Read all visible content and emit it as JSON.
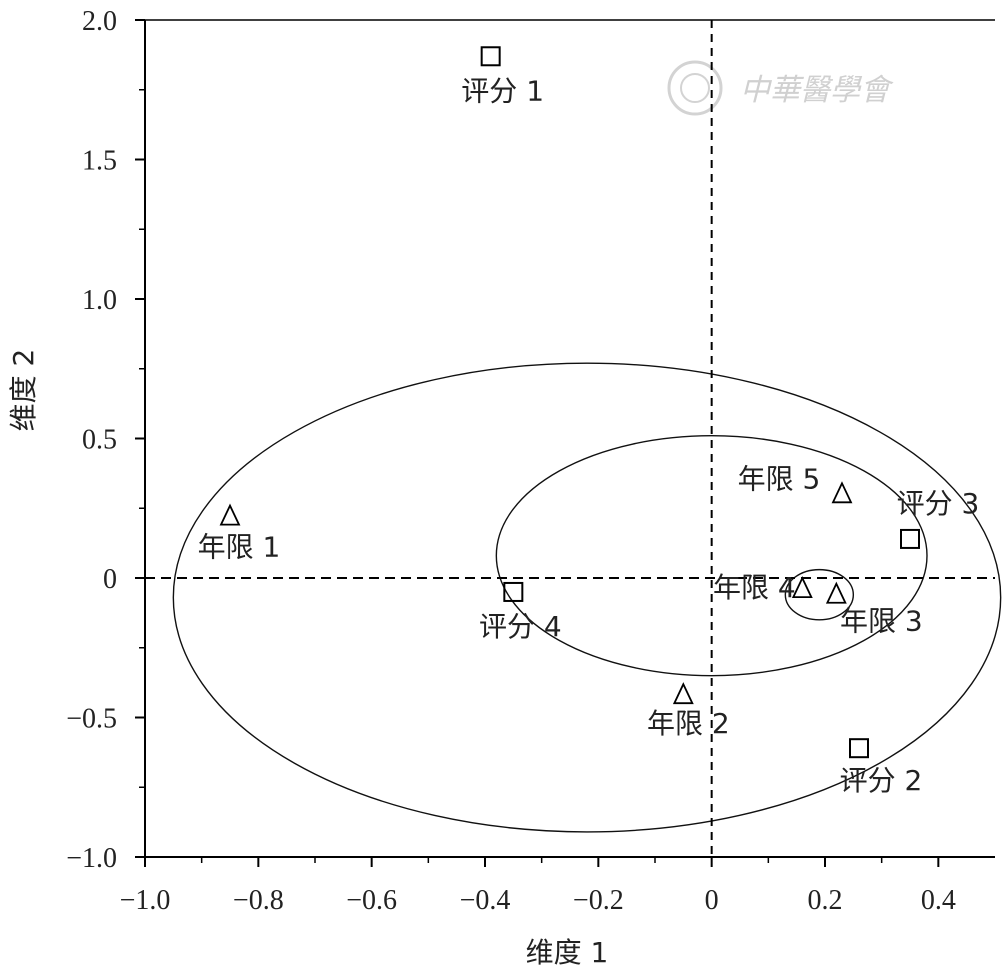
{
  "chart_data": {
    "type": "scatter",
    "title": "",
    "xlabel": "维度 1",
    "ylabel": "维度 2",
    "xlim": [
      -1.0,
      0.5
    ],
    "ylim": [
      -1.0,
      2.0
    ],
    "xticks": [
      "−1.0",
      "−0.8",
      "−0.6",
      "−0.4",
      "−0.2",
      "0",
      "0.2",
      "0.4"
    ],
    "xtick_values": [
      -1.0,
      -0.8,
      -0.6,
      -0.4,
      -0.2,
      0,
      0.2,
      0.4
    ],
    "yticks": [
      "2.0",
      "1.5",
      "1.0",
      "0.5",
      "0",
      "−0.5",
      "−1.0"
    ],
    "ytick_values": [
      2.0,
      1.5,
      1.0,
      0.5,
      0,
      -0.5,
      -1.0
    ],
    "reference_lines": {
      "x": 0,
      "y": 0,
      "style": "dashed"
    },
    "grid": false,
    "series": [
      {
        "marker": "square",
        "points": [
          {
            "label": "评分 1",
            "x": -0.39,
            "y": 1.87
          },
          {
            "label": "评分 2",
            "x": 0.26,
            "y": -0.61
          },
          {
            "label": "评分 3",
            "x": 0.35,
            "y": 0.14
          },
          {
            "label": "评分 4",
            "x": -0.35,
            "y": -0.05
          }
        ]
      },
      {
        "marker": "triangle",
        "points": [
          {
            "label": "年限 1",
            "x": -0.85,
            "y": 0.22
          },
          {
            "label": "年限 2",
            "x": -0.05,
            "y": -0.42
          },
          {
            "label": "年限 3",
            "x": 0.22,
            "y": -0.06
          },
          {
            "label": "年限 4",
            "x": 0.16,
            "y": -0.04
          },
          {
            "label": "年限 5",
            "x": 0.23,
            "y": 0.3
          }
        ]
      }
    ],
    "ellipses": [
      {
        "cx": -0.22,
        "cy": -0.07,
        "rx": 0.73,
        "ry": 0.84
      },
      {
        "cx": 0.0,
        "cy": 0.08,
        "rx": 0.38,
        "ry": 0.43
      },
      {
        "cx": 0.19,
        "cy": -0.06,
        "rx": 0.06,
        "ry": 0.09
      }
    ]
  },
  "watermark": {
    "text": "中華醫學會",
    "icon": "society-seal-icon"
  }
}
